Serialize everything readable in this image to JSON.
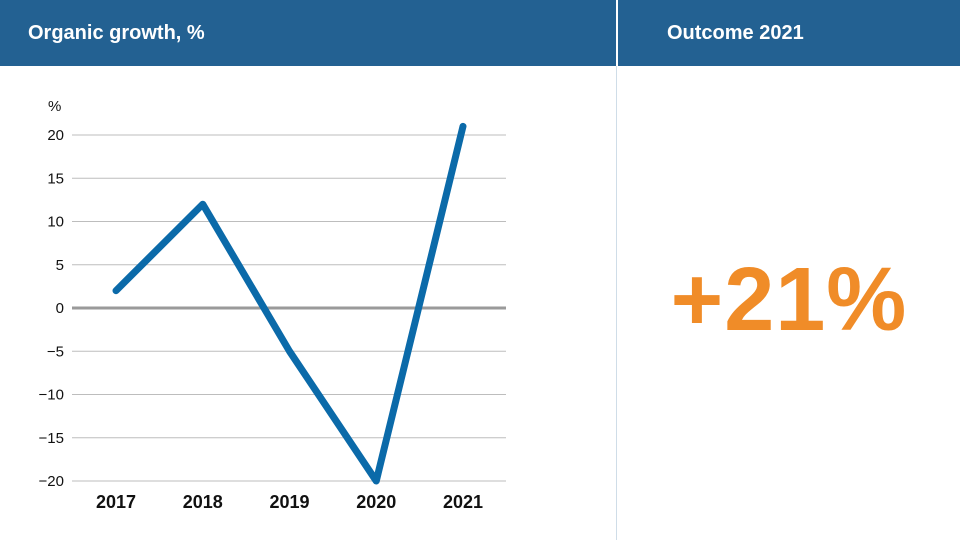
{
  "headers": {
    "left_title": "Organic growth, %",
    "right_title": "Outcome 2021"
  },
  "outcome": {
    "value_text": "+21%",
    "color": "#f08c28"
  },
  "colors": {
    "header_bg": "#236192",
    "line": "#0b6aa9",
    "grid": "#bdbdbd",
    "zero_line": "#9a9a9a"
  },
  "chart_data": {
    "type": "line",
    "title": "Organic growth, %",
    "ylabel": "%",
    "xlabel": "",
    "categories": [
      "2017",
      "2018",
      "2019",
      "2020",
      "2021"
    ],
    "series": [
      {
        "values": [
          2,
          12,
          -5,
          -20,
          21
        ]
      }
    ],
    "ylim": [
      -20,
      20
    ],
    "yticks": [
      20,
      15,
      10,
      5,
      0,
      -5,
      -10,
      -15,
      -20
    ],
    "ytick_labels": [
      "20",
      "15",
      "10",
      "5",
      "0",
      "−5",
      "−10",
      "−15",
      "−20"
    ],
    "grid": true,
    "legend": "none"
  }
}
